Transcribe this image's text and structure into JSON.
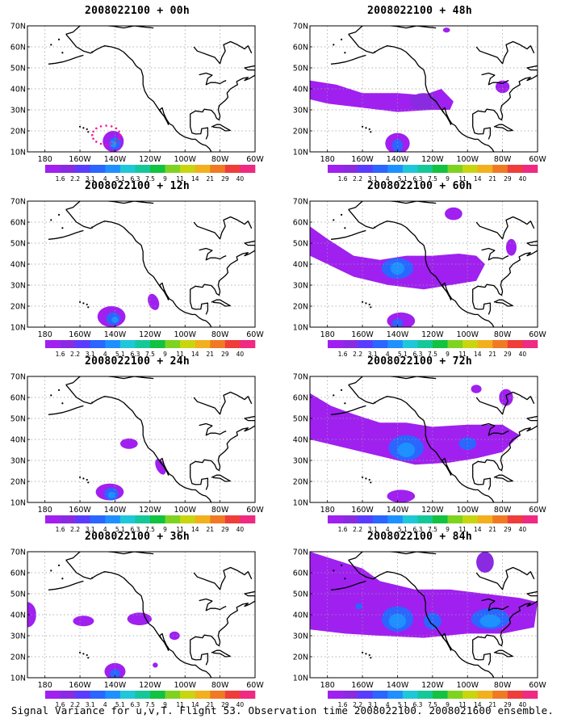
{
  "colorbar": {
    "labels": [
      "1.6",
      "2.2",
      "3.1",
      "4",
      "5.1",
      "6.3",
      "7.5",
      "9",
      "11",
      "14",
      "21",
      "29",
      "40"
    ],
    "colors": [
      "#a020f0",
      "#8a2be2",
      "#5a3cff",
      "#2a66ff",
      "#1e90ff",
      "#1fc7d8",
      "#16c79a",
      "#12c240",
      "#7ed321",
      "#c8d60f",
      "#f2b01e",
      "#f07a23",
      "#ee3d3b",
      "#ee2a82"
    ]
  },
  "axes": {
    "lat_labels": [
      "70N",
      "60N",
      "50N",
      "40N",
      "30N",
      "20N",
      "10N"
    ],
    "lon_labels": [
      "180",
      "160W",
      "140W",
      "120W",
      "100W",
      "80W",
      "60W"
    ]
  },
  "panels": [
    {
      "title": "2008022100 + 00h"
    },
    {
      "title": "2008022100 + 48h"
    },
    {
      "title": "2008022100 + 12h"
    },
    {
      "title": "2008022100 + 60h"
    },
    {
      "title": "2008022100 + 24h"
    },
    {
      "title": "2008022100 + 72h"
    },
    {
      "title": "2008022100 + 36h"
    },
    {
      "title": "2008022100 + 84h"
    }
  ],
  "footer": "Signal Variance for u,v,T. Flight 53. Observation time 2008022100. 2008021600 ensemble."
}
